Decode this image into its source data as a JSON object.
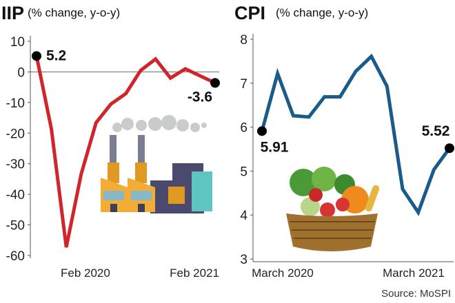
{
  "chart_data": [
    {
      "type": "line",
      "title": "IIP",
      "subtitle": "(% change, y-o-y)",
      "ylim": [
        -60,
        10
      ],
      "yticks": [
        10,
        0,
        -10,
        -20,
        -30,
        -40,
        -50,
        -60
      ],
      "xtick_labels": [
        "Feb 2020",
        "Feb 2021"
      ],
      "values": [
        5.2,
        -18.7,
        -57.3,
        -33.4,
        -16.6,
        -10.5,
        -7.1,
        0.5,
        4.2,
        -2.0,
        1.0,
        -1.3,
        -3.6
      ],
      "annotations": [
        "5.2",
        "-3.6"
      ],
      "color": "#d0262b"
    },
    {
      "type": "line",
      "title": "CPI",
      "subtitle": "(% change, y-o-y)",
      "ylim": [
        3,
        8
      ],
      "yticks": [
        8,
        7,
        6,
        5,
        4,
        3
      ],
      "xtick_labels": [
        "March 2020",
        "March 2021"
      ],
      "values": [
        5.91,
        7.22,
        6.26,
        6.23,
        6.69,
        6.69,
        7.27,
        7.61,
        6.93,
        4.59,
        4.06,
        5.03,
        5.52
      ],
      "annotations": [
        "5.91",
        "5.52"
      ],
      "color": "#1a5b8a"
    }
  ],
  "source": "Source: MoSPI"
}
